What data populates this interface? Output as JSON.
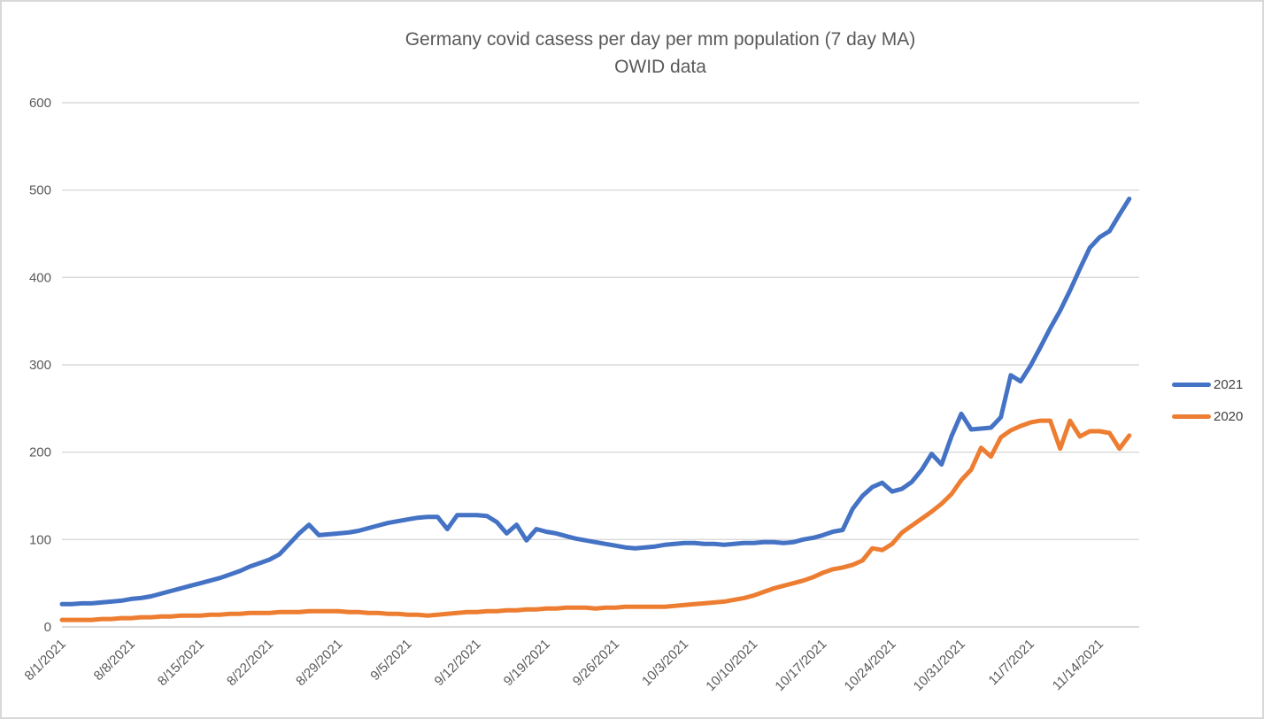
{
  "chart_data": {
    "type": "line",
    "title": "Germany covid casess per day per mm population (7 day MA)",
    "subtitle": "OWID data",
    "x": [
      "8/1/2021",
      "8/2/2021",
      "8/3/2021",
      "8/4/2021",
      "8/5/2021",
      "8/6/2021",
      "8/7/2021",
      "8/8/2021",
      "8/9/2021",
      "8/10/2021",
      "8/11/2021",
      "8/12/2021",
      "8/13/2021",
      "8/14/2021",
      "8/15/2021",
      "8/16/2021",
      "8/17/2021",
      "8/18/2021",
      "8/19/2021",
      "8/20/2021",
      "8/21/2021",
      "8/22/2021",
      "8/23/2021",
      "8/24/2021",
      "8/25/2021",
      "8/26/2021",
      "8/27/2021",
      "8/28/2021",
      "8/29/2021",
      "8/30/2021",
      "8/31/2021",
      "9/1/2021",
      "9/2/2021",
      "9/3/2021",
      "9/4/2021",
      "9/5/2021",
      "9/6/2021",
      "9/7/2021",
      "9/8/2021",
      "9/9/2021",
      "9/10/2021",
      "9/11/2021",
      "9/12/2021",
      "9/13/2021",
      "9/14/2021",
      "9/15/2021",
      "9/16/2021",
      "9/17/2021",
      "9/18/2021",
      "9/19/2021",
      "9/20/2021",
      "9/21/2021",
      "9/22/2021",
      "9/23/2021",
      "9/24/2021",
      "9/25/2021",
      "9/26/2021",
      "9/27/2021",
      "9/28/2021",
      "9/29/2021",
      "9/30/2021",
      "10/1/2021",
      "10/2/2021",
      "10/3/2021",
      "10/4/2021",
      "10/5/2021",
      "10/6/2021",
      "10/7/2021",
      "10/8/2021",
      "10/9/2021",
      "10/10/2021",
      "10/11/2021",
      "10/12/2021",
      "10/13/2021",
      "10/14/2021",
      "10/15/2021",
      "10/16/2021",
      "10/17/2021",
      "10/18/2021",
      "10/19/2021",
      "10/20/2021",
      "10/21/2021",
      "10/22/2021",
      "10/23/2021",
      "10/24/2021",
      "10/25/2021",
      "10/26/2021",
      "10/27/2021",
      "10/28/2021",
      "10/29/2021",
      "10/30/2021",
      "10/31/2021",
      "11/1/2021",
      "11/2/2021",
      "11/3/2021",
      "11/4/2021",
      "11/5/2021",
      "11/6/2021",
      "11/7/2021",
      "11/8/2021",
      "11/9/2021",
      "11/10/2021",
      "11/11/2021",
      "11/12/2021",
      "11/13/2021",
      "11/14/2021",
      "11/15/2021",
      "11/16/2021",
      "11/17/2021"
    ],
    "x_tick_labels": [
      "8/1/2021",
      "8/8/2021",
      "8/15/2021",
      "8/22/2021",
      "8/29/2021",
      "9/5/2021",
      "9/12/2021",
      "9/19/2021",
      "9/26/2021",
      "10/3/2021",
      "10/10/2021",
      "10/17/2021",
      "10/24/2021",
      "10/31/2021",
      "11/7/2021",
      "11/14/2021"
    ],
    "x_tick_every": 7,
    "series": [
      {
        "name": "2021",
        "color": "#4472C4",
        "values": [
          26,
          26,
          27,
          27,
          28,
          29,
          30,
          32,
          33,
          35,
          38,
          41,
          44,
          47,
          50,
          53,
          56,
          60,
          64,
          69,
          73,
          77,
          83,
          95,
          107,
          117,
          105,
          106,
          107,
          108,
          110,
          113,
          116,
          119,
          121,
          123,
          125,
          126,
          126,
          112,
          128,
          128,
          128,
          127,
          120,
          107,
          117,
          99,
          112,
          109,
          107,
          104,
          101,
          99,
          97,
          95,
          93,
          91,
          90,
          91,
          92,
          94,
          95,
          96,
          96,
          95,
          95,
          94,
          95,
          96,
          96,
          97,
          97,
          96,
          97,
          100,
          102,
          105,
          109,
          111,
          135,
          150,
          160,
          165,
          155,
          158,
          166,
          180,
          198,
          186,
          218,
          244,
          226,
          227,
          228,
          240,
          288,
          281,
          299,
          320,
          342,
          362,
          385,
          410,
          434,
          446,
          453,
          472,
          490
        ]
      },
      {
        "name": "2020",
        "color": "#ED7D31",
        "values": [
          8,
          8,
          8,
          8,
          9,
          9,
          10,
          10,
          11,
          11,
          12,
          12,
          13,
          13,
          13,
          14,
          14,
          15,
          15,
          16,
          16,
          16,
          17,
          17,
          17,
          18,
          18,
          18,
          18,
          17,
          17,
          16,
          16,
          15,
          15,
          14,
          14,
          13,
          14,
          15,
          16,
          17,
          17,
          18,
          18,
          19,
          19,
          20,
          20,
          21,
          21,
          22,
          22,
          22,
          21,
          22,
          22,
          23,
          23,
          23,
          23,
          23,
          24,
          25,
          26,
          27,
          28,
          29,
          31,
          33,
          36,
          40,
          44,
          47,
          50,
          53,
          57,
          62,
          66,
          68,
          71,
          76,
          90,
          88,
          95,
          108,
          116,
          124,
          132,
          141,
          152,
          168,
          180,
          205,
          195,
          217,
          225,
          230,
          234,
          236,
          236,
          204,
          236,
          218,
          224,
          224,
          222,
          204,
          219
        ]
      }
    ],
    "ylim": [
      0,
      600
    ],
    "y_ticks": [
      0,
      100,
      200,
      300,
      400,
      500,
      600
    ],
    "grid": "horizontal",
    "legend_position": "right",
    "colors": {
      "gridline": "#D9D9D9",
      "axis_label": "#595959",
      "title": "#595959",
      "legend_text": "#404040",
      "frame": "#D8D8D8",
      "background": "#FFFFFF"
    }
  }
}
